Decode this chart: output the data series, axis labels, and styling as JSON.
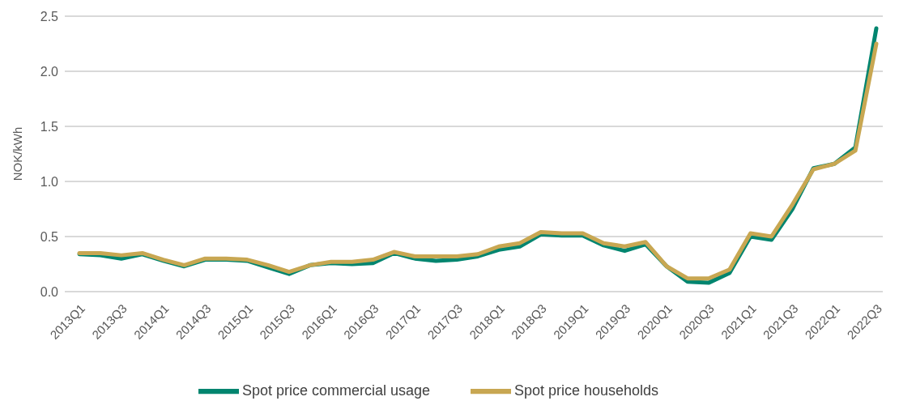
{
  "chart_data": {
    "type": "line",
    "ylabel": "NOK/kWh",
    "categories": [
      "2013Q1",
      null,
      "2013Q3",
      null,
      "2014Q1",
      null,
      "2014Q3",
      null,
      "2015Q1",
      null,
      "2015Q3",
      null,
      "2016Q1",
      null,
      "2016Q3",
      null,
      "2017Q1",
      null,
      "2017Q3",
      null,
      "2018Q1",
      null,
      "2018Q3",
      null,
      "2019Q1",
      null,
      "2019Q3",
      null,
      "2020Q1",
      null,
      "2020Q3",
      null,
      "2021Q1",
      null,
      "2021Q3",
      null,
      "2022Q1",
      null,
      "2022Q3"
    ],
    "series": [
      {
        "name": "Spot price commercial usage",
        "color": "#00856f",
        "values": [
          0.34,
          0.33,
          0.3,
          0.34,
          0.28,
          0.23,
          0.29,
          0.29,
          0.28,
          0.22,
          0.16,
          0.24,
          0.26,
          0.25,
          0.26,
          0.35,
          0.3,
          0.28,
          0.29,
          0.32,
          0.38,
          0.41,
          0.52,
          0.51,
          0.51,
          0.42,
          0.37,
          0.43,
          0.23,
          0.09,
          0.08,
          0.17,
          0.5,
          0.47,
          0.75,
          1.12,
          1.16,
          1.31,
          2.39
        ]
      },
      {
        "name": "Spot price households",
        "color": "#c8a752",
        "values": [
          0.35,
          0.35,
          0.33,
          0.35,
          0.29,
          0.24,
          0.3,
          0.3,
          0.29,
          0.24,
          0.18,
          0.24,
          0.27,
          0.27,
          0.29,
          0.36,
          0.32,
          0.32,
          0.32,
          0.34,
          0.41,
          0.44,
          0.54,
          0.53,
          0.53,
          0.44,
          0.41,
          0.45,
          0.23,
          0.12,
          0.12,
          0.2,
          0.53,
          0.5,
          0.79,
          1.11,
          1.16,
          1.28,
          2.25
        ]
      }
    ],
    "ylim": [
      0,
      2.5
    ],
    "yticks": [
      {
        "value": 0,
        "label": "0.0"
      },
      {
        "value": 0.5,
        "label": "0.5"
      },
      {
        "value": 1,
        "label": "1.0"
      },
      {
        "value": 1.5,
        "label": "1.5"
      },
      {
        "value": 2,
        "label": "2.0"
      },
      {
        "value": 2.5,
        "label": "2.5"
      }
    ],
    "grid": "y",
    "legend": "bottom",
    "marker": "none",
    "line_style": "solid"
  }
}
